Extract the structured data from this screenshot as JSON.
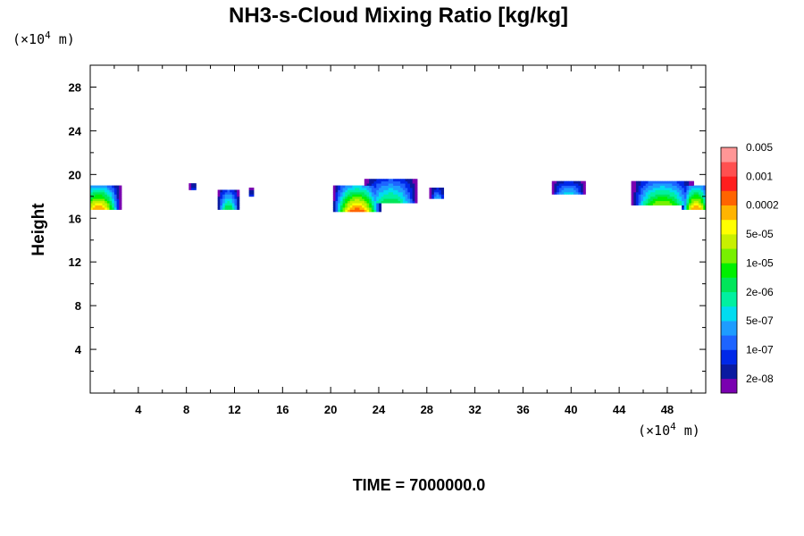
{
  "chart_data": {
    "type": "heatmap",
    "title": "NH3-s-Cloud Mixing Ratio [kg/kg]",
    "ylabel": "Height",
    "x_unit": {
      "prefix": "(×10",
      "exp": "4",
      "suffix": " m)"
    },
    "y_unit": {
      "prefix": "(×10",
      "exp": "4",
      "suffix": " m)"
    },
    "xlim": [
      0,
      51.2
    ],
    "ylim": [
      0,
      30
    ],
    "x_ticks": [
      4,
      8,
      12,
      16,
      20,
      24,
      28,
      32,
      36,
      40,
      44,
      48
    ],
    "y_ticks": [
      4,
      8,
      12,
      16,
      20,
      24,
      28
    ],
    "colorbar": {
      "colors": [
        "#7a00b0",
        "#0a1aa0",
        "#0028e8",
        "#1e64ff",
        "#1e9cff",
        "#00dcf0",
        "#00f0a0",
        "#00e65a",
        "#00f000",
        "#78f000",
        "#c8f000",
        "#ffff00",
        "#ffb400",
        "#ff6400",
        "#ff1e1e",
        "#ff5050",
        "#ff9696"
      ],
      "labels": [
        "2e-08",
        "1e-07",
        "5e-07",
        "2e-06",
        "1e-05",
        "5e-05",
        "0.0002",
        "0.001",
        "0.005"
      ]
    },
    "cloud_regions": [
      {
        "x_center": 0.7,
        "x_halfwidth": 1.8,
        "base": 16.9,
        "top": 19.0,
        "peak_level": 13
      },
      {
        "x_center": 8.6,
        "x_halfwidth": 0.3,
        "base": 18.7,
        "top": 19.2,
        "peak_level": 3
      },
      {
        "x_center": 11.5,
        "x_halfwidth": 0.9,
        "base": 16.9,
        "top": 18.6,
        "peak_level": 8
      },
      {
        "x_center": 13.4,
        "x_halfwidth": 0.25,
        "base": 18.1,
        "top": 18.7,
        "peak_level": 3
      },
      {
        "x_center": 22.2,
        "x_halfwidth": 2.0,
        "base": 16.7,
        "top": 19.0,
        "peak_level": 14
      },
      {
        "x_center": 25.0,
        "x_halfwidth": 2.2,
        "base": 17.5,
        "top": 19.6,
        "peak_level": 8
      },
      {
        "x_center": 28.9,
        "x_halfwidth": 0.6,
        "base": 17.8,
        "top": 18.8,
        "peak_level": 5
      },
      {
        "x_center": 39.8,
        "x_halfwidth": 1.4,
        "base": 18.2,
        "top": 19.3,
        "peak_level": 6
      },
      {
        "x_center": 47.6,
        "x_halfwidth": 2.5,
        "base": 17.3,
        "top": 19.4,
        "peak_level": 10
      },
      {
        "x_center": 50.4,
        "x_halfwidth": 1.2,
        "base": 16.9,
        "top": 19.0,
        "peak_level": 13
      }
    ]
  },
  "time_label": "TIME = 7000000.0"
}
